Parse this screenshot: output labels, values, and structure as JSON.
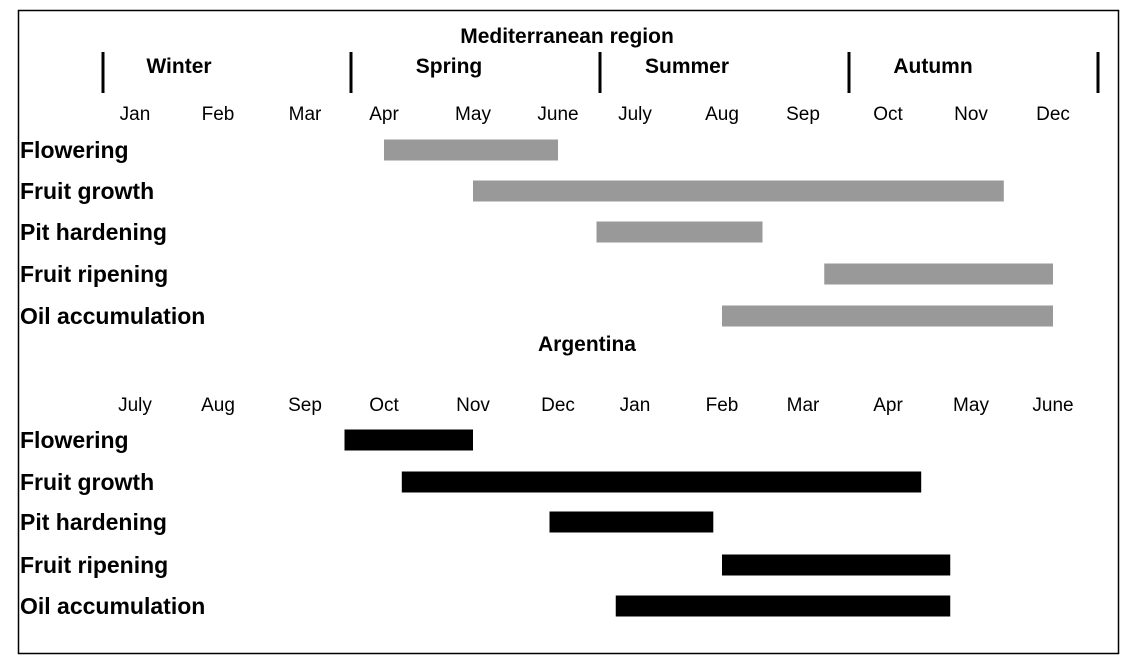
{
  "chart_data": [
    {
      "type": "gantt",
      "title": "Mediterranean region",
      "seasons": [
        "Winter",
        "Spring",
        "Summer",
        "Autumn"
      ],
      "months": [
        "Jan",
        "Feb",
        "Mar",
        "Apr",
        "May",
        "June",
        "July",
        "Aug",
        "Sep",
        "Oct",
        "Nov",
        "Dec"
      ],
      "bar_color": "#999999",
      "tasks": [
        {
          "name": "Flowering",
          "start": 3.0,
          "end": 5.0
        },
        {
          "name": "Fruit growth",
          "start": 4.0,
          "end": 10.4
        },
        {
          "name": "Pit hardening",
          "start": 5.5,
          "end": 7.5
        },
        {
          "name": "Fruit ripening",
          "start": 8.25,
          "end": 11.0
        },
        {
          "name": "Oil accumulation",
          "start": 7.0,
          "end": 11.0
        }
      ]
    },
    {
      "type": "gantt",
      "title": "Argentina",
      "months": [
        "July",
        "Aug",
        "Sep",
        "Oct",
        "Nov",
        "Dec",
        "Jan",
        "Feb",
        "Mar",
        "Apr",
        "May",
        "June"
      ],
      "bar_color": "#000000",
      "tasks": [
        {
          "name": "Flowering",
          "start": 2.5,
          "end": 4.0
        },
        {
          "name": "Fruit growth",
          "start": 3.2,
          "end": 9.4
        },
        {
          "name": "Pit hardening",
          "start": 4.9,
          "end": 6.9
        },
        {
          "name": "Fruit ripening",
          "start": 7.0,
          "end": 9.75
        },
        {
          "name": "Oil accumulation",
          "start": 5.75,
          "end": 9.75
        }
      ]
    }
  ]
}
